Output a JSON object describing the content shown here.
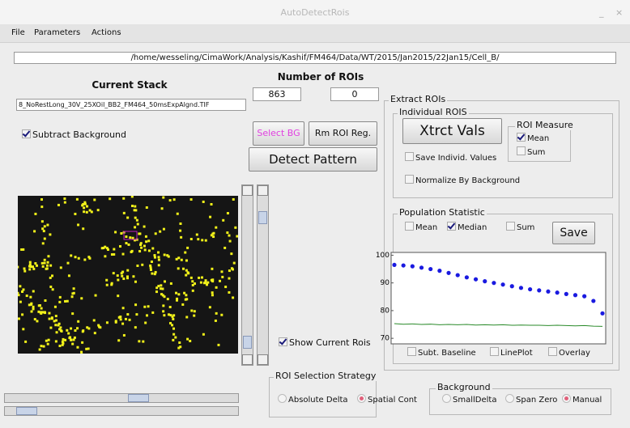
{
  "window": {
    "title": "AutoDetectRois"
  },
  "menu": [
    "File",
    "Parameters",
    "Actions"
  ],
  "path": "/home/wesseling/CimaWork/Analysis/Kashif/FM464/Data/WT/2015/Jan2015/22Jan15/Cell_B/",
  "current_stack": {
    "label": "Current Stack",
    "file": "8_NoRestLong_30V_25XOil_BB2_FM464_50msExpAlgnd.TIF"
  },
  "roi_count": {
    "label": "Number of ROIs",
    "values": [
      863,
      0
    ]
  },
  "subtract_background": {
    "label": "Subtract Background",
    "checked": true
  },
  "buttons": {
    "select_bg": "Select BG",
    "rm_roi": "Rm ROI Reg.",
    "detect": "Detect Pattern"
  },
  "show_rois": {
    "label": "Show Current Rois",
    "checked": true
  },
  "extract": {
    "title": "Extract ROIs",
    "individual": "Individual ROIS",
    "xtrct": "Xtrct Vals",
    "roi_measure": {
      "title": "ROI Measure",
      "options": [
        {
          "label": "Mean",
          "checked": true
        },
        {
          "label": "Sum",
          "checked": false
        }
      ]
    },
    "save_individ": {
      "label": "Save Individ. Values",
      "checked": false
    },
    "normalize": {
      "label": "Normalize By Background",
      "checked": false
    }
  },
  "population": {
    "title": "Population Statistic",
    "save": "Save",
    "options": [
      {
        "label": "Mean",
        "checked": false
      },
      {
        "label": "Median",
        "checked": true
      },
      {
        "label": "Sum",
        "checked": false
      }
    ],
    "chart": {
      "type": "line",
      "ylim": [
        68,
        101
      ],
      "yticks": [
        70,
        80,
        90,
        100
      ],
      "series": [
        {
          "color": "#1a1ae0",
          "values": [
            96.5,
            96.3,
            96.0,
            95.5,
            95.0,
            94.4,
            93.6,
            92.8,
            92.0,
            91.3,
            90.6,
            90.0,
            89.4,
            88.8,
            88.2,
            87.7,
            87.3,
            86.9,
            86.5,
            86.0,
            85.6,
            85.2,
            83.5,
            79.0
          ]
        },
        {
          "color": "#2a8a2a",
          "values": [
            75.3,
            75.1,
            75.2,
            75.0,
            75.1,
            74.9,
            75.0,
            74.9,
            75.0,
            74.8,
            74.9,
            74.8,
            74.9,
            74.7,
            74.8,
            74.7,
            74.7,
            74.6,
            74.7,
            74.6,
            74.5,
            74.6,
            74.4,
            74.3
          ]
        }
      ]
    },
    "plot_options": [
      {
        "label": "Subt. Baseline",
        "checked": false
      },
      {
        "label": "LinePlot",
        "checked": false
      },
      {
        "label": "Overlay",
        "checked": false
      }
    ]
  },
  "roi_strategy": {
    "title": "ROI Selection Strategy",
    "options": [
      {
        "label": "Absolute Delta",
        "selected": false
      },
      {
        "label": "Spatial Cont",
        "selected": true
      }
    ]
  },
  "background": {
    "title": "Background",
    "options": [
      {
        "label": "SmallDelta",
        "selected": false
      },
      {
        "label": "Span Zero",
        "selected": false
      },
      {
        "label": "Manual",
        "selected": true
      }
    ]
  }
}
